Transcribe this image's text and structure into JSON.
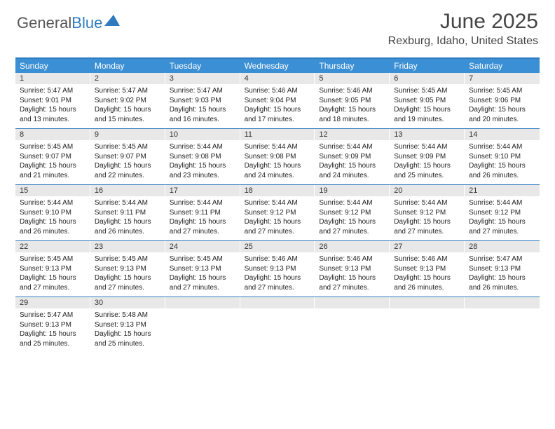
{
  "logo": {
    "text1": "General",
    "text2": "Blue"
  },
  "title": "June 2025",
  "location": "Rexburg, Idaho, United States",
  "colors": {
    "header_bg": "#3b8fd4",
    "border": "#2f7bbf",
    "daynum_bg": "#e8e8e8",
    "text": "#333333",
    "logo_gray": "#555555",
    "logo_blue": "#2f7bbf"
  },
  "day_names": [
    "Sunday",
    "Monday",
    "Tuesday",
    "Wednesday",
    "Thursday",
    "Friday",
    "Saturday"
  ],
  "weeks": [
    [
      {
        "n": "1",
        "sr": "5:47 AM",
        "ss": "9:01 PM",
        "dl": "15 hours and 13 minutes."
      },
      {
        "n": "2",
        "sr": "5:47 AM",
        "ss": "9:02 PM",
        "dl": "15 hours and 15 minutes."
      },
      {
        "n": "3",
        "sr": "5:47 AM",
        "ss": "9:03 PM",
        "dl": "15 hours and 16 minutes."
      },
      {
        "n": "4",
        "sr": "5:46 AM",
        "ss": "9:04 PM",
        "dl": "15 hours and 17 minutes."
      },
      {
        "n": "5",
        "sr": "5:46 AM",
        "ss": "9:05 PM",
        "dl": "15 hours and 18 minutes."
      },
      {
        "n": "6",
        "sr": "5:45 AM",
        "ss": "9:05 PM",
        "dl": "15 hours and 19 minutes."
      },
      {
        "n": "7",
        "sr": "5:45 AM",
        "ss": "9:06 PM",
        "dl": "15 hours and 20 minutes."
      }
    ],
    [
      {
        "n": "8",
        "sr": "5:45 AM",
        "ss": "9:07 PM",
        "dl": "15 hours and 21 minutes."
      },
      {
        "n": "9",
        "sr": "5:45 AM",
        "ss": "9:07 PM",
        "dl": "15 hours and 22 minutes."
      },
      {
        "n": "10",
        "sr": "5:44 AM",
        "ss": "9:08 PM",
        "dl": "15 hours and 23 minutes."
      },
      {
        "n": "11",
        "sr": "5:44 AM",
        "ss": "9:08 PM",
        "dl": "15 hours and 24 minutes."
      },
      {
        "n": "12",
        "sr": "5:44 AM",
        "ss": "9:09 PM",
        "dl": "15 hours and 24 minutes."
      },
      {
        "n": "13",
        "sr": "5:44 AM",
        "ss": "9:09 PM",
        "dl": "15 hours and 25 minutes."
      },
      {
        "n": "14",
        "sr": "5:44 AM",
        "ss": "9:10 PM",
        "dl": "15 hours and 26 minutes."
      }
    ],
    [
      {
        "n": "15",
        "sr": "5:44 AM",
        "ss": "9:10 PM",
        "dl": "15 hours and 26 minutes."
      },
      {
        "n": "16",
        "sr": "5:44 AM",
        "ss": "9:11 PM",
        "dl": "15 hours and 26 minutes."
      },
      {
        "n": "17",
        "sr": "5:44 AM",
        "ss": "9:11 PM",
        "dl": "15 hours and 27 minutes."
      },
      {
        "n": "18",
        "sr": "5:44 AM",
        "ss": "9:12 PM",
        "dl": "15 hours and 27 minutes."
      },
      {
        "n": "19",
        "sr": "5:44 AM",
        "ss": "9:12 PM",
        "dl": "15 hours and 27 minutes."
      },
      {
        "n": "20",
        "sr": "5:44 AM",
        "ss": "9:12 PM",
        "dl": "15 hours and 27 minutes."
      },
      {
        "n": "21",
        "sr": "5:44 AM",
        "ss": "9:12 PM",
        "dl": "15 hours and 27 minutes."
      }
    ],
    [
      {
        "n": "22",
        "sr": "5:45 AM",
        "ss": "9:13 PM",
        "dl": "15 hours and 27 minutes."
      },
      {
        "n": "23",
        "sr": "5:45 AM",
        "ss": "9:13 PM",
        "dl": "15 hours and 27 minutes."
      },
      {
        "n": "24",
        "sr": "5:45 AM",
        "ss": "9:13 PM",
        "dl": "15 hours and 27 minutes."
      },
      {
        "n": "25",
        "sr": "5:46 AM",
        "ss": "9:13 PM",
        "dl": "15 hours and 27 minutes."
      },
      {
        "n": "26",
        "sr": "5:46 AM",
        "ss": "9:13 PM",
        "dl": "15 hours and 27 minutes."
      },
      {
        "n": "27",
        "sr": "5:46 AM",
        "ss": "9:13 PM",
        "dl": "15 hours and 26 minutes."
      },
      {
        "n": "28",
        "sr": "5:47 AM",
        "ss": "9:13 PM",
        "dl": "15 hours and 26 minutes."
      }
    ],
    [
      {
        "n": "29",
        "sr": "5:47 AM",
        "ss": "9:13 PM",
        "dl": "15 hours and 25 minutes."
      },
      {
        "n": "30",
        "sr": "5:48 AM",
        "ss": "9:13 PM",
        "dl": "15 hours and 25 minutes."
      },
      null,
      null,
      null,
      null,
      null
    ]
  ],
  "labels": {
    "sunrise": "Sunrise:",
    "sunset": "Sunset:",
    "daylight": "Daylight:"
  }
}
